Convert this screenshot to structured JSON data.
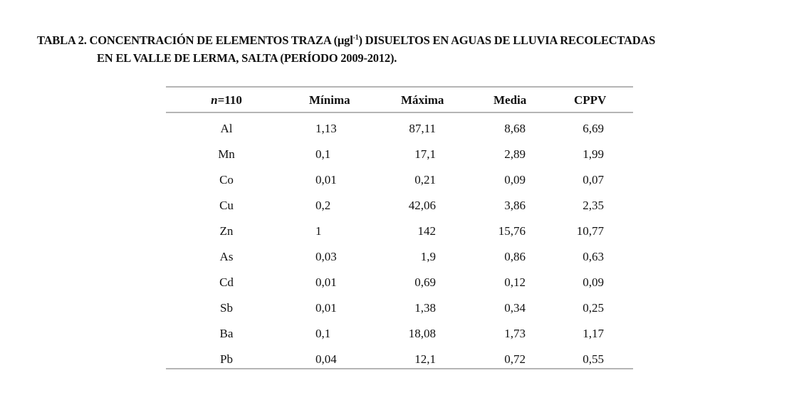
{
  "caption": {
    "line1_prefix": "TABLA 2. CONCENTRACIÓN DE ELEMENTOS TRAZA (µgl",
    "line1_sup": "-1",
    "line1_suffix": ") DISUELTOS EN AGUAS DE LLUVIA RECOLECTADAS",
    "line2": "EN EL VALLE DE LERMA, SALTA (PERÍODO 2009-2012)."
  },
  "table": {
    "headers": {
      "n_italic": "n",
      "n_value": "=110",
      "min": "Mínima",
      "max": "Máxima",
      "mean": "Media",
      "cppv": "CPPV"
    },
    "rows": [
      [
        "Al",
        "1,13",
        "87,11",
        "8,68",
        "6,69"
      ],
      [
        "Mn",
        "0,1",
        "17,1",
        "2,89",
        "1,99"
      ],
      [
        "Co",
        "0,01",
        "0,21",
        "0,09",
        "0,07"
      ],
      [
        "Cu",
        "0,2",
        "42,06",
        "3,86",
        "2,35"
      ],
      [
        "Zn",
        "1",
        "142",
        "15,76",
        "10,77"
      ],
      [
        "As",
        "0,03",
        "1,9",
        "0,86",
        "0,63"
      ],
      [
        "Cd",
        "0,01",
        "0,69",
        "0,12",
        "0,09"
      ],
      [
        "Sb",
        "0,01",
        "1,38",
        "0,34",
        "0,25"
      ],
      [
        "Ba",
        "0,1",
        "18,08",
        "1,73",
        "1,17"
      ],
      [
        "Pb",
        "0,04",
        "12,1",
        "0,72",
        "0,55"
      ]
    ]
  }
}
